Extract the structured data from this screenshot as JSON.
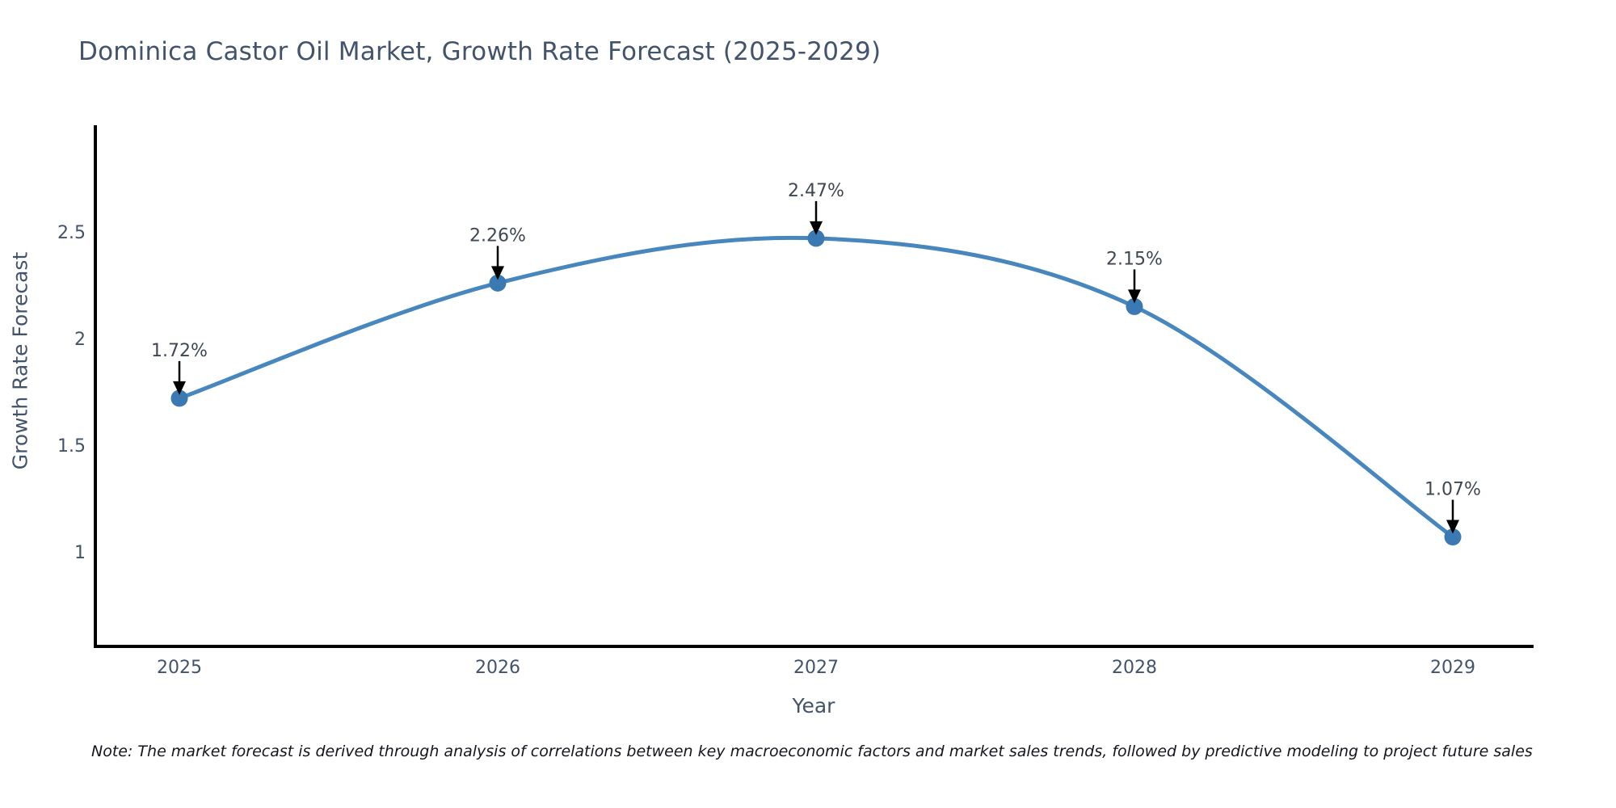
{
  "title": "Dominica Castor Oil Market, Growth Rate Forecast (2025-2029)",
  "note": "Note: The market forecast is derived through analysis of correlations between key macroeconomic factors and market sales trends, followed by predictive modeling to project future sales",
  "chart_data": {
    "type": "line",
    "title": "Dominica Castor Oil Market, Growth Rate Forecast (2025-2029)",
    "xlabel": "Year",
    "ylabel": "Growth Rate Forecast",
    "x": [
      2025,
      2026,
      2027,
      2028,
      2029
    ],
    "values": [
      1.72,
      2.26,
      2.47,
      2.15,
      1.07
    ],
    "point_labels": [
      "1.72%",
      "2.26%",
      "2.47%",
      "2.15%",
      "1.07%"
    ],
    "yticks": [
      1,
      1.5,
      2,
      2.5
    ],
    "ylim": [
      0.56,
      2.99
    ],
    "line_shape": "spline",
    "grid": false,
    "legend_position": "none",
    "colors": {
      "line": "#4787bd",
      "marker": "#3a79b2",
      "axis": "#000000",
      "tick_text": "#42536b",
      "annotation_text": "#3f4753",
      "arrow": "#000000"
    }
  }
}
